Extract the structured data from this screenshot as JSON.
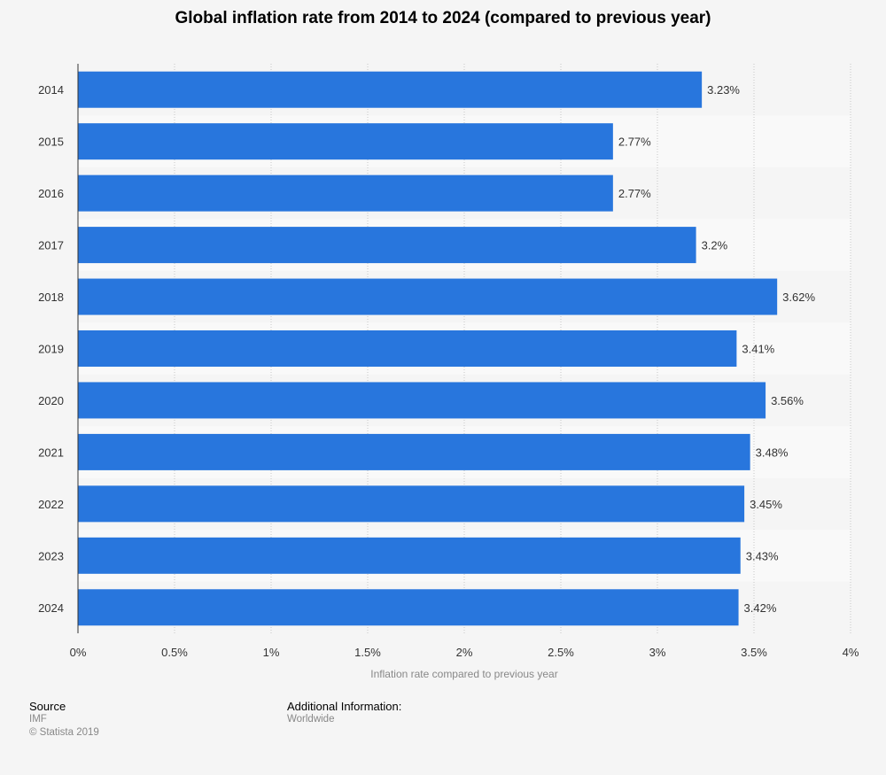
{
  "footer": {
    "source_heading": "Source",
    "source_value": "IMF",
    "copyright": "© Statista 2019",
    "additional_heading": "Additional Information:",
    "additional_value": "Worldwide"
  },
  "colors": {
    "bar": "#2876dd",
    "band": "#f9f9f9",
    "background": "#f5f5f5"
  },
  "chart_data": {
    "type": "bar",
    "orientation": "horizontal",
    "title": "Global inflation rate from 2014 to 2024 (compared to previous year)",
    "xlabel": "Inflation rate compared to previous year",
    "ylabel": "",
    "categories": [
      "2014",
      "2015",
      "2016",
      "2017",
      "2018",
      "2019",
      "2020",
      "2021",
      "2022",
      "2023",
      "2024"
    ],
    "values": [
      3.23,
      2.77,
      2.77,
      3.2,
      3.62,
      3.41,
      3.56,
      3.48,
      3.45,
      3.43,
      3.42
    ],
    "value_labels": [
      "3.23%",
      "2.77%",
      "2.77%",
      "3.2%",
      "3.62%",
      "3.41%",
      "3.56%",
      "3.48%",
      "3.45%",
      "3.43%",
      "3.42%"
    ],
    "xlim": [
      0,
      4
    ],
    "xticks": [
      0,
      0.5,
      1,
      1.5,
      2,
      2.5,
      3,
      3.5,
      4
    ],
    "xtick_labels": [
      "0%",
      "0.5%",
      "1%",
      "1.5%",
      "2%",
      "2.5%",
      "3%",
      "3.5%",
      "4%"
    ],
    "grid": true,
    "legend": "none"
  }
}
